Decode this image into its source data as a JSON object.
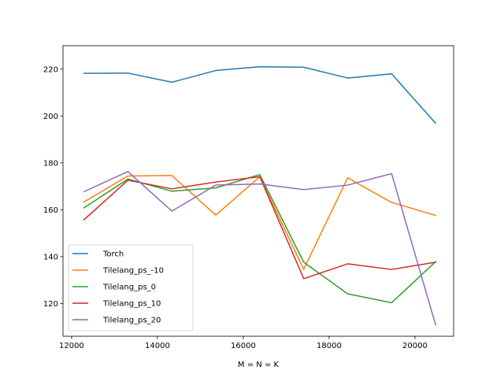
{
  "chart_data": {
    "type": "line",
    "title": "",
    "xlabel": "M = N = K",
    "ylabel": "",
    "xlim": [
      11800,
      20900
    ],
    "ylim": [
      106,
      230
    ],
    "xticks": [
      12000,
      14000,
      16000,
      18000,
      20000
    ],
    "yticks": [
      120,
      140,
      160,
      180,
      200,
      220
    ],
    "grid": false,
    "legend_position": "lower-left",
    "x": [
      12288,
      13312,
      14336,
      15360,
      16384,
      17408,
      18432,
      19456,
      20480
    ],
    "series": [
      {
        "name": "Torch",
        "color": "#1f77b4",
        "values": [
          218.2,
          218.3,
          214.4,
          219.4,
          221.0,
          220.8,
          216.2,
          218.0,
          196.9
        ]
      },
      {
        "name": "Tilelang_ps_-10",
        "color": "#ff7f0e",
        "values": [
          163.3,
          174.4,
          174.6,
          157.7,
          174.1,
          134.6,
          173.6,
          163.1,
          157.6
        ]
      },
      {
        "name": "Tilelang_ps_0",
        "color": "#2ca02c",
        "values": [
          160.8,
          173.1,
          167.9,
          169.3,
          175.0,
          137.6,
          124.1,
          120.3,
          137.8
        ]
      },
      {
        "name": "Tilelang_ps_10",
        "color": "#d62728",
        "values": [
          155.7,
          172.6,
          168.9,
          171.8,
          174.1,
          130.6,
          136.9,
          134.5,
          137.6
        ]
      },
      {
        "name": "Tilelang_ps_20",
        "color": "#9467bd",
        "values": [
          167.7,
          176.3,
          159.4,
          170.5,
          171.0,
          168.6,
          170.5,
          175.4,
          110.9
        ]
      }
    ]
  }
}
